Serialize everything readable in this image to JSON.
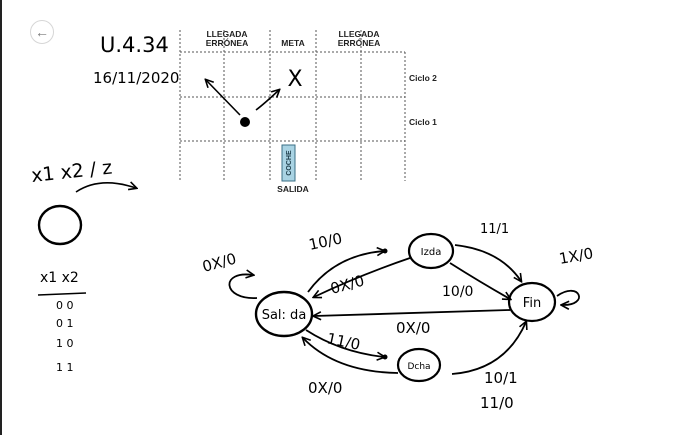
{
  "toolbar": {
    "back_symbol": "←"
  },
  "grid": {
    "header_left": [
      "LLEGADA",
      "ERRÓNEA"
    ],
    "header_center": "META",
    "header_right": [
      "LLEGADA",
      "ERRÓNEA"
    ],
    "row_label_top": "Ciclo 2",
    "row_label_mid": "Ciclo 1",
    "car_label": "COCHE",
    "start_label": "SALIDA",
    "goal_mark": "X"
  },
  "notes": {
    "title": "U.4.34",
    "date": "16/11/2020",
    "inputs_output": "x1 x2 / z",
    "inputs_header": "x1 x2",
    "input_combos": [
      "0 0",
      "0 1",
      "1 0",
      "1 1"
    ]
  },
  "fsm": {
    "states": {
      "salida": "Sal: da",
      "izda": "Izda",
      "dcha": "Dcha",
      "fin": "Fin"
    },
    "transitions": {
      "salida_self": "0X/0",
      "salida_izda": "10/0",
      "izda_salida": "0X/0",
      "salida_dcha": "11/0",
      "dcha_salida": "0X/0",
      "izda_fin": "11/1",
      "izda_fin_b": "10/0",
      "fin_salida": "0X/0",
      "dcha_fin_a": "10/1",
      "dcha_fin_b": "11/0",
      "fin_self": "1X/0"
    }
  }
}
